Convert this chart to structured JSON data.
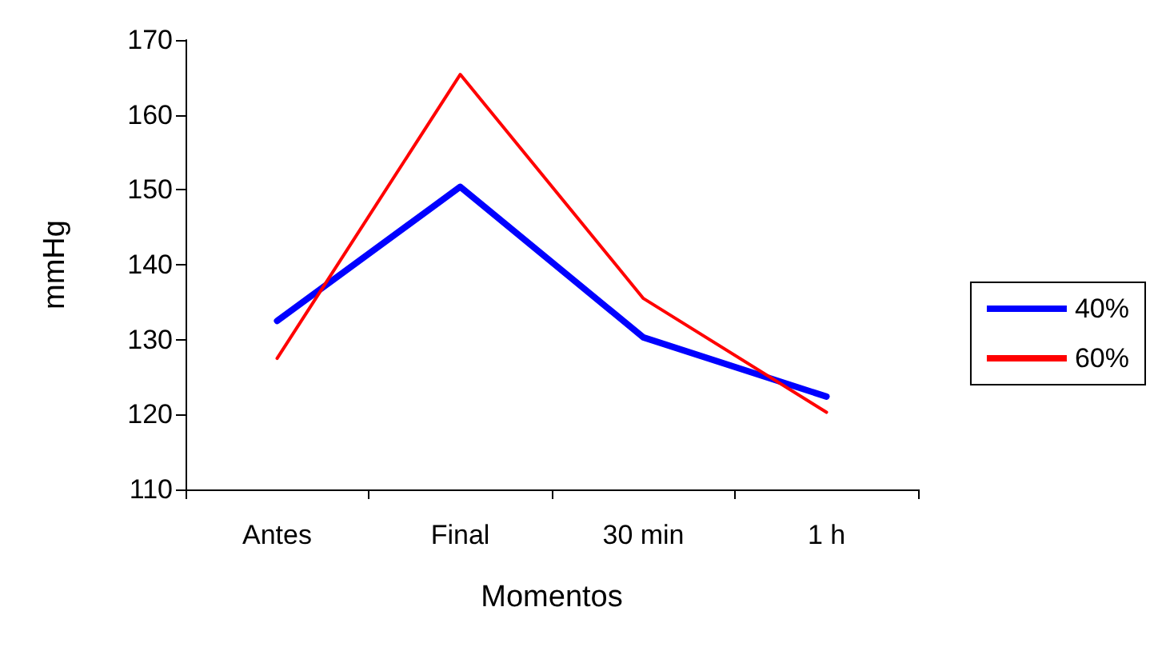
{
  "chart_data": {
    "type": "line",
    "xlabel": "Momentos",
    "ylabel": "mmHg",
    "categories": [
      "Antes",
      "Final",
      "30 min",
      "1 h"
    ],
    "series": [
      {
        "name": "40%",
        "color": "#0000ff",
        "values": [
          132.5,
          150.4,
          130.3,
          122.4
        ]
      },
      {
        "name": "60%",
        "color": "#ff0000",
        "values": [
          127.5,
          165.4,
          135.5,
          120.3
        ]
      }
    ],
    "ylim": [
      110,
      170
    ],
    "yticks": [
      110,
      120,
      130,
      140,
      150,
      160,
      170
    ],
    "grid": false,
    "legend": "right",
    "marker": "none",
    "line_style": "solid"
  }
}
